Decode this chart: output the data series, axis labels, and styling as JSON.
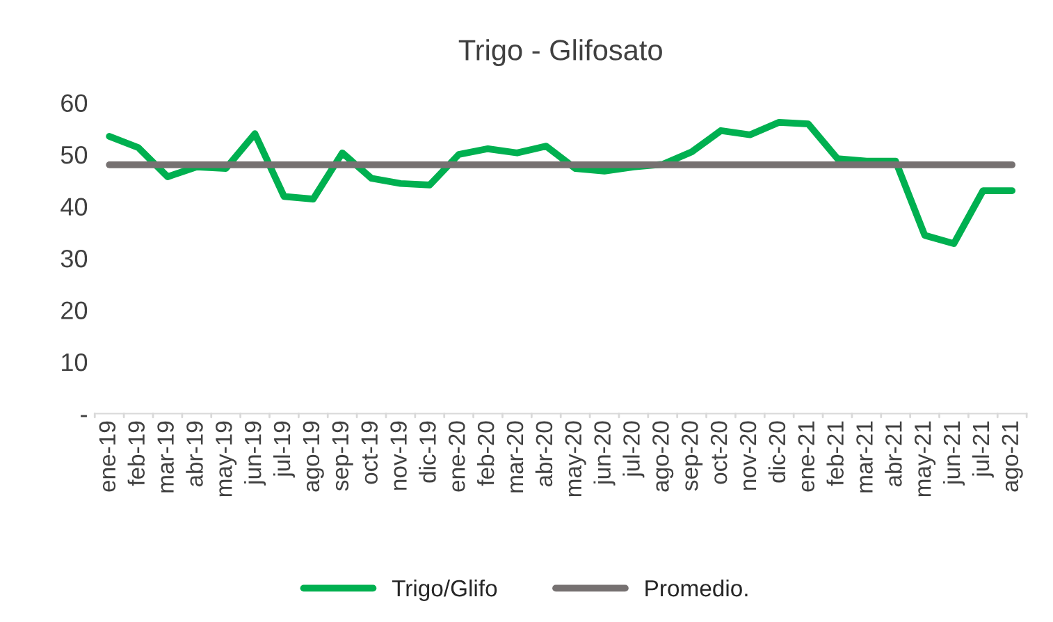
{
  "chart_data": {
    "type": "line",
    "title": "Trigo - Glifosato",
    "categories": [
      "ene-19",
      "feb-19",
      "mar-19",
      "abr-19",
      "may-19",
      "jun-19",
      "jul-19",
      "ago-19",
      "sep-19",
      "oct-19",
      "nov-19",
      "dic-19",
      "ene-20",
      "feb-20",
      "mar-20",
      "abr-20",
      "may-20",
      "jun-20",
      "jul-20",
      "ago-20",
      "sep-20",
      "oct-20",
      "nov-20",
      "dic-20",
      "ene-21",
      "feb-21",
      "mar-21",
      "abr-21",
      "may-21",
      "jun-21",
      "jul-21",
      "ago-21"
    ],
    "series": [
      {
        "name": "Trigo/Glifo",
        "color": "#00b050",
        "values": [
          53.5,
          51.3,
          45.7,
          47.6,
          47.3,
          54,
          41.9,
          41.4,
          50.3,
          45.4,
          44.4,
          44.1,
          50,
          51.1,
          50.3,
          51.6,
          47.3,
          46.8,
          47.6,
          48.1,
          50.5,
          54.6,
          53.8,
          56.2,
          55.9,
          49.2,
          48.7,
          48.7,
          34.4,
          32.8,
          43,
          43
        ]
      },
      {
        "name": "Promedio.",
        "color": "#767171",
        "values": [
          48,
          48,
          48,
          48,
          48,
          48,
          48,
          48,
          48,
          48,
          48,
          48,
          48,
          48,
          48,
          48,
          48,
          48,
          48,
          48,
          48,
          48,
          48,
          48,
          48,
          48,
          48,
          48,
          48,
          48,
          48,
          48
        ]
      }
    ],
    "ylim": [
      0,
      60
    ],
    "yticks": [
      {
        "value": 0,
        "label": "-"
      },
      10,
      20,
      30,
      40,
      50,
      60
    ],
    "grid": false,
    "legend": "bottom",
    "marker": "none",
    "line_style": "solid"
  }
}
